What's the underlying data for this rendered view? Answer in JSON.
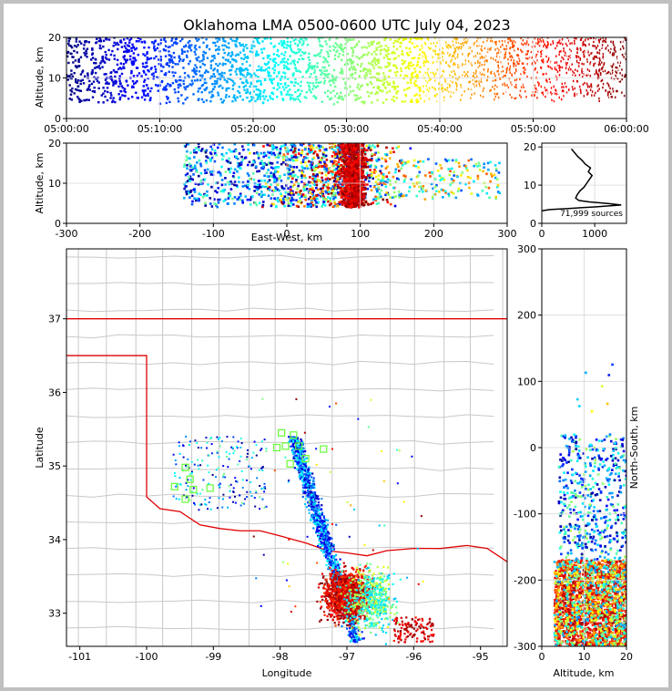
{
  "chart_data": [
    {
      "type": "scatter",
      "panel": "altitude-time",
      "title": "Oklahoma LMA 0500-0600 UTC July 04, 2023",
      "xlabel": "",
      "ylabel": "Altitude, km",
      "x_ticks": [
        "05:00:00",
        "05:10:00",
        "05:20:00",
        "05:30:00",
        "05:40:00",
        "05:50:00",
        "06:00:00"
      ],
      "y_ticks": [
        "0",
        "10",
        "20"
      ],
      "xlim_minutes": [
        0,
        60
      ],
      "ylim": [
        0,
        20
      ],
      "color_encoding": "time (jet colormap, blue = 05:00, red = 06:00)",
      "grid": true
    },
    {
      "type": "scatter",
      "panel": "altitude-eastwest",
      "xlabel": "East-West, km",
      "ylabel": "Altitude, km",
      "x_ticks": [
        "-300",
        "-200",
        "-100",
        "0",
        "100",
        "200",
        "300"
      ],
      "y_ticks": [
        "0",
        "10",
        "20"
      ],
      "xlim": [
        -300,
        300
      ],
      "ylim": [
        0,
        20
      ],
      "grid": true
    },
    {
      "type": "line",
      "panel": "altitude-histogram",
      "annotation": "71,999 sources",
      "x_ticks": [
        "0",
        "1000"
      ],
      "y_ticks": [
        "0",
        "10",
        "20"
      ],
      "xlim": [
        0,
        1600
      ],
      "ylim": [
        0,
        21
      ],
      "profile": [
        {
          "count": 0,
          "alt": 3.3
        },
        {
          "count": 150,
          "alt": 3.6
        },
        {
          "count": 500,
          "alt": 3.9
        },
        {
          "count": 1000,
          "alt": 4.3
        },
        {
          "count": 1500,
          "alt": 4.8
        },
        {
          "count": 1250,
          "alt": 5.2
        },
        {
          "count": 900,
          "alt": 5.6
        },
        {
          "count": 700,
          "alt": 6.0
        },
        {
          "count": 640,
          "alt": 6.6
        },
        {
          "count": 670,
          "alt": 7.5
        },
        {
          "count": 720,
          "alt": 8.5
        },
        {
          "count": 800,
          "alt": 9.5
        },
        {
          "count": 850,
          "alt": 10.5
        },
        {
          "count": 900,
          "alt": 11.5
        },
        {
          "count": 950,
          "alt": 12.5
        },
        {
          "count": 880,
          "alt": 13.5
        },
        {
          "count": 920,
          "alt": 14.5
        },
        {
          "count": 820,
          "alt": 15.5
        },
        {
          "count": 760,
          "alt": 16.5
        },
        {
          "count": 680,
          "alt": 17.5
        },
        {
          "count": 620,
          "alt": 18.5
        },
        {
          "count": 560,
          "alt": 19.5
        }
      ]
    },
    {
      "type": "scatter",
      "panel": "plan-view",
      "xlabel": "Longitude",
      "ylabel": "Latitude",
      "x_ticks": [
        "-101",
        "-100",
        "-99",
        "-98",
        "-97",
        "-96",
        "-95"
      ],
      "y_ticks": [
        "33",
        "34",
        "35",
        "36",
        "37"
      ],
      "xlim": [
        -101.2,
        -94.6
      ],
      "ylim": [
        32.55,
        37.95
      ],
      "stations_marker": "green open squares"
    },
    {
      "type": "scatter",
      "panel": "northsouth-altitude",
      "xlabel": "Altitude, km",
      "ylabel": "North-South, km",
      "x_ticks": [
        "0",
        "10",
        "20"
      ],
      "y_ticks": [
        "-300",
        "-200",
        "-100",
        "0",
        "100",
        "200",
        "300"
      ],
      "xlim": [
        0,
        20
      ],
      "ylim": [
        -300,
        300
      ]
    }
  ]
}
